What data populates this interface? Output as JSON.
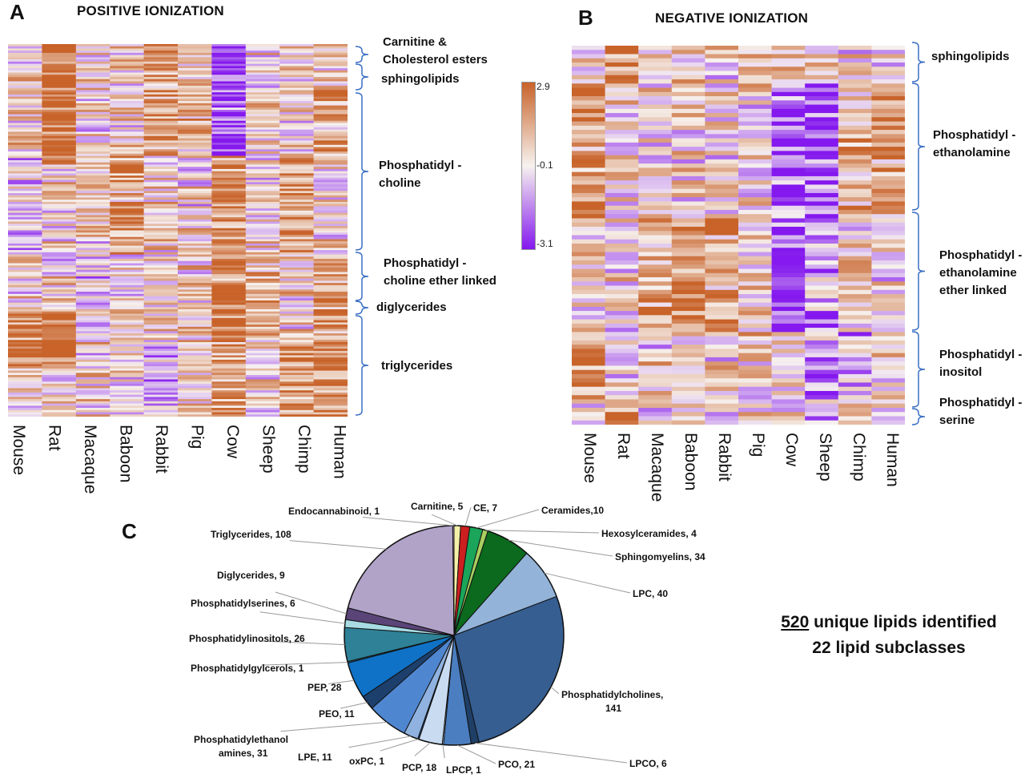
{
  "panel_a": {
    "letter": "A",
    "title": "POSITIVE IONIZATION",
    "species": [
      "Mouse",
      "Rat",
      "Macaque",
      "Baboon",
      "Rabbit",
      "Pig",
      "Cow",
      "Sheep",
      "Chimp",
      "Human"
    ],
    "groups": [
      {
        "lines": [
          "Carnitine &",
          "Cholesterol esters"
        ]
      },
      {
        "lines": [
          "sphingolipids"
        ]
      },
      {
        "lines": [
          "Phosphatidyl -",
          "choline"
        ]
      },
      {
        "lines": [
          "Phosphatidyl -",
          "choline ether linked"
        ]
      },
      {
        "lines": [
          "diglycerides"
        ]
      },
      {
        "lines": [
          "triglycerides"
        ]
      }
    ]
  },
  "panel_b": {
    "letter": "B",
    "title": "NEGATIVE IONIZATION",
    "species": [
      "Mouse",
      "Rat",
      "Macaque",
      "Baboon",
      "Rabbit",
      "Pig",
      "Cow",
      "Sheep",
      "Chimp",
      "Human"
    ],
    "groups": [
      {
        "lines": [
          "sphingolipids"
        ]
      },
      {
        "lines": [
          "Phosphatidyl -",
          "ethanolamine"
        ]
      },
      {
        "lines": [
          "Phosphatidyl -",
          "ethanolamine",
          "ether linked"
        ]
      },
      {
        "lines": [
          "Phosphatidyl -",
          "inositol"
        ]
      },
      {
        "lines": [
          "Phosphatidyl -",
          "serine"
        ]
      }
    ]
  },
  "colorbar": {
    "max_label": "2.9",
    "mid_label": "-0.1",
    "min_label": "-3.1",
    "high_color": "#c8632a",
    "mid_color": "#f7f2ef",
    "low_color": "#8418ee"
  },
  "panel_c": {
    "letter": "C"
  },
  "summary": {
    "count": "520",
    "line1_rest": " unique lipids identified",
    "line2": "22 lipid subclasses"
  },
  "chart_data": [
    {
      "type": "heatmap",
      "title": "POSITIVE IONIZATION",
      "columns": [
        "Mouse",
        "Rat",
        "Macaque",
        "Baboon",
        "Rabbit",
        "Pig",
        "Cow",
        "Sheep",
        "Chimp",
        "Human"
      ],
      "row_groups": [
        "Carnitine & Cholesterol esters",
        "sphingolipids",
        "Phosphatidyl - choline",
        "Phosphatidyl - choline ether linked",
        "diglycerides",
        "triglycerides"
      ],
      "color_range": [
        -3.1,
        2.9
      ],
      "color_mid": -0.1
    },
    {
      "type": "heatmap",
      "title": "NEGATIVE IONIZATION",
      "columns": [
        "Mouse",
        "Rat",
        "Macaque",
        "Baboon",
        "Rabbit",
        "Pig",
        "Cow",
        "Sheep",
        "Chimp",
        "Human"
      ],
      "row_groups": [
        "sphingolipids",
        "Phosphatidyl - ethanolamine",
        "Phosphatidyl - ethanolamine ether linked",
        "Phosphatidyl - inositol",
        "Phosphatidyl - serine"
      ],
      "color_range": [
        -3.1,
        2.9
      ],
      "color_mid": -0.1
    },
    {
      "type": "pie",
      "slices": [
        {
          "label": "Carnitine, 5",
          "value": 5,
          "color": "#f5f0a8"
        },
        {
          "label": "CE, 7",
          "value": 7,
          "color": "#cc1f1f"
        },
        {
          "label": "Ceramides,10",
          "value": 10,
          "color": "#1aa55a"
        },
        {
          "label": "Hexosylceramides, 4",
          "value": 4,
          "color": "#a8cf60"
        },
        {
          "label": "Sphingomyelins, 34",
          "value": 34,
          "color": "#0b6a1e"
        },
        {
          "label": "LPC, 40",
          "value": 40,
          "color": "#93b3d8"
        },
        {
          "label": "Phosphatidylcholines, 141",
          "value": 141,
          "color": "#365e91"
        },
        {
          "label": "LPCO, 6",
          "value": 6,
          "color": "#1f3f66"
        },
        {
          "label": "PCO, 21",
          "value": 21,
          "color": "#4a7ec0"
        },
        {
          "label": "LPCP, 1",
          "value": 1,
          "color": "#c3d4ec"
        },
        {
          "label": "PCP, 18",
          "value": 18,
          "color": "#c8dbf1"
        },
        {
          "label": "oxPC, 1",
          "value": 1,
          "color": "#2a5a9a"
        },
        {
          "label": "LPE, 11",
          "value": 11,
          "color": "#8fb2e0"
        },
        {
          "label": "Phosphatidylethanolamines, 31",
          "value": 31,
          "color": "#4f86d0"
        },
        {
          "label": "PEO, 11",
          "value": 11,
          "color": "#1d3f6b"
        },
        {
          "label": "PEP, 28",
          "value": 28,
          "color": "#0f72c6"
        },
        {
          "label": "Phosphatidylgylcerols, 1",
          "value": 1,
          "color": "#2b6e8e"
        },
        {
          "label": "Phosphatidylinositols, 26",
          "value": 26,
          "color": "#2e8196"
        },
        {
          "label": "Phosphatidylserines, 6",
          "value": 6,
          "color": "#a8dbe4"
        },
        {
          "label": "Diglycerides, 9",
          "value": 9,
          "color": "#5a4478"
        },
        {
          "label": "Triglycerides, 108",
          "value": 108,
          "color": "#b1a3c8"
        },
        {
          "label": "Endocannabinoid, 1",
          "value": 1,
          "color": "#c9a6df"
        }
      ]
    }
  ]
}
